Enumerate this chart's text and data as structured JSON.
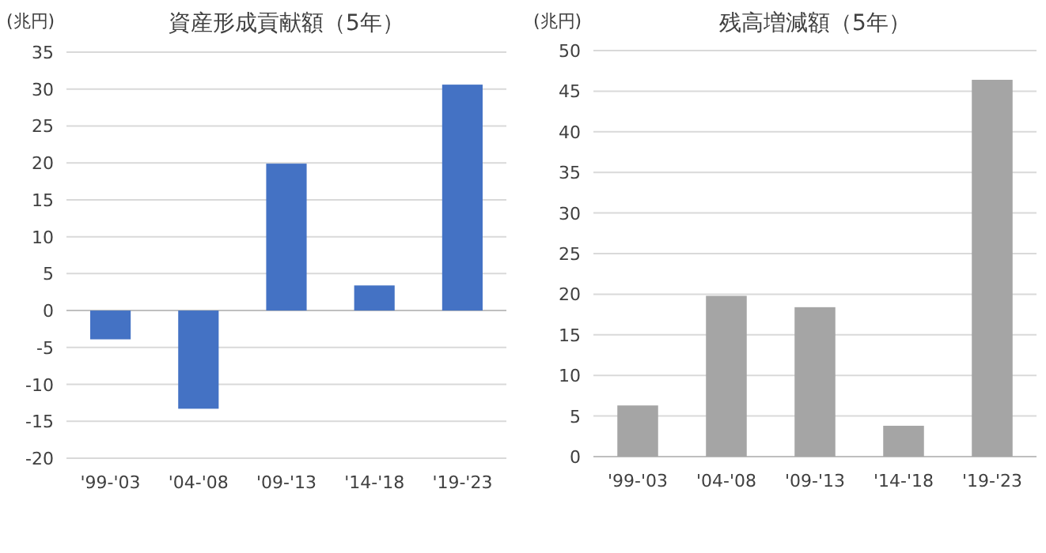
{
  "chart_data": [
    {
      "type": "bar",
      "title": "資産形成貢献額（5年）",
      "ylabel": "(兆円)",
      "categories": [
        "'99-'03",
        "'04-'08",
        "'09-'13",
        "'14-'18",
        "'19-'23"
      ],
      "values": [
        -3.9,
        -13.3,
        19.9,
        3.4,
        30.6
      ],
      "color": "#4472c4",
      "ylim": [
        -20,
        35
      ],
      "yticks": [
        -20,
        -15,
        -10,
        -5,
        0,
        5,
        10,
        15,
        20,
        25,
        30,
        35
      ],
      "grid": "y"
    },
    {
      "type": "bar",
      "title": "残高増減額（5年）",
      "ylabel": "(兆円)",
      "categories": [
        "'99-'03",
        "'04-'08",
        "'09-'13",
        "'14-'18",
        "'19-'23"
      ],
      "values": [
        6.3,
        19.8,
        18.4,
        3.8,
        46.4
      ],
      "color": "#a5a5a5",
      "ylim": [
        0,
        50
      ],
      "yticks": [
        0,
        5,
        10,
        15,
        20,
        25,
        30,
        35,
        40,
        45,
        50
      ],
      "grid": "y"
    }
  ]
}
